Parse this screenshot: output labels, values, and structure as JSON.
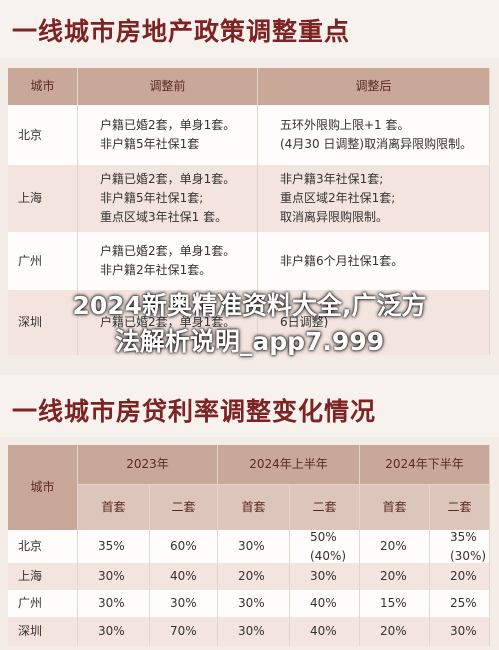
{
  "header1": {
    "title": "一线城市房地产政策调整重点"
  },
  "table1": {
    "columns": [
      "城市",
      "调整前",
      "调整后"
    ],
    "rows": [
      [
        "北京",
        [
          "户籍已婚2套，单身1套。",
          "非户籍5年社保1套"
        ],
        [
          "五环外限购上限+1 套。",
          "(4月30 日调整)取消离异限购限制。"
        ]
      ],
      [
        "上海",
        [
          "户籍已婚2套，单身1套。",
          "非户籍5年社保1套;",
          "重点区域3年社保1 套。"
        ],
        [
          "非户籍3年社保1套;",
          "重点区域2年社保1套;",
          "取消离异限购限制。"
        ]
      ],
      [
        "广州",
        [
          "户籍已婚2套，单身1套。",
          "非户籍2年社保1套。"
        ],
        [
          "非户籍6个月社保1套。"
        ]
      ],
      [
        "深圳",
        [
          "户籍已婚2套，单身1套。"
        ],
        [
          "6日调整)"
        ]
      ]
    ]
  },
  "overlay": {
    "lines": [
      "2024新奥精准资料大全,广泛方",
      "法解析说明_app7.999"
    ]
  },
  "header2": {
    "title": "一线城市房贷利率调整变化情况"
  },
  "table2": {
    "city_header": "城市",
    "groups": [
      "2023年",
      "2024年上半年",
      "2024年下半年"
    ],
    "subheaders": [
      "首套",
      "二套",
      "首套",
      "二套",
      "首套",
      "二套"
    ],
    "rows": [
      [
        "北京",
        "35%",
        "60%",
        "30%",
        "50%(40%)",
        "20%",
        "35%(30%)"
      ],
      [
        "上海",
        "30%",
        "40%",
        "20%",
        "30%",
        "20%",
        "20%"
      ],
      [
        "广州",
        "30%",
        "30%",
        "30%",
        "40%",
        "15%",
        "25%"
      ],
      [
        "深圳",
        "30%",
        "70%",
        "30%",
        "40%",
        "20%",
        "30%"
      ]
    ]
  }
}
